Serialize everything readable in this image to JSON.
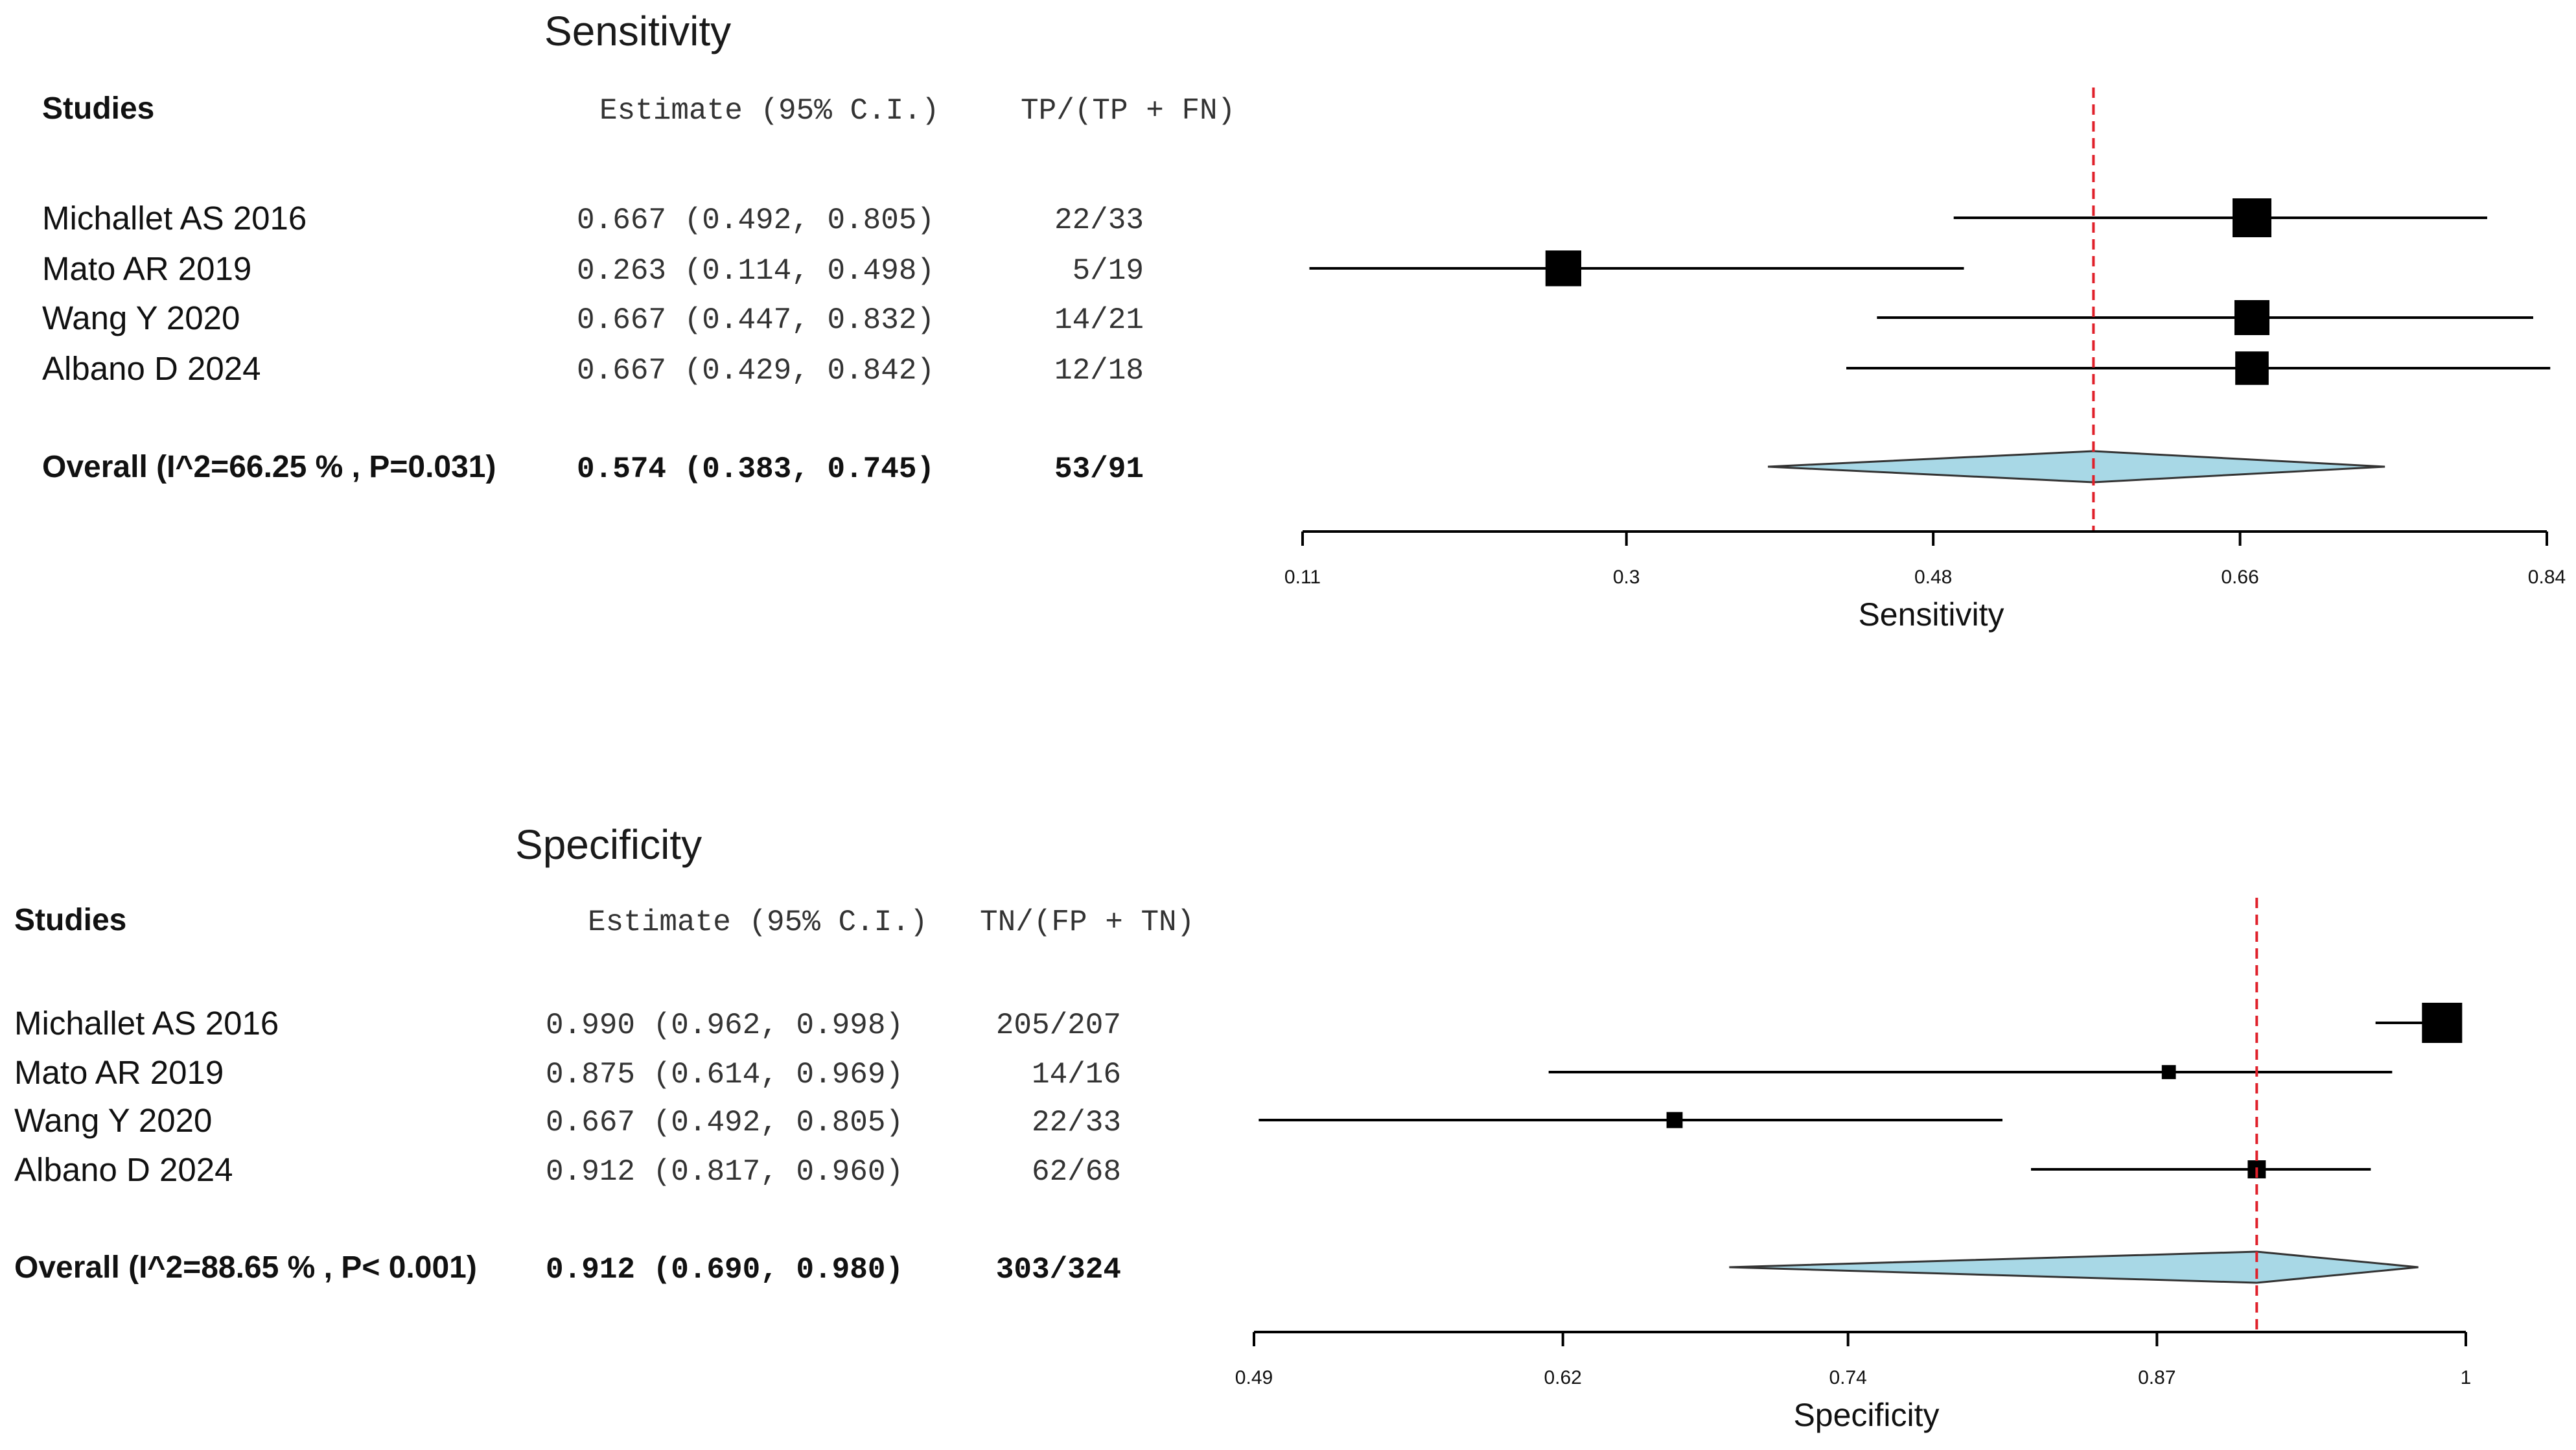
{
  "chart_data": [
    {
      "type": "forest",
      "title": "Sensitivity",
      "xlabel": "Sensitivity",
      "xlim": [
        0.11,
        0.84
      ],
      "xticks": [
        0.11,
        0.3,
        0.48,
        0.66,
        0.84
      ],
      "xtick_labels": [
        "0.11",
        "0.3",
        "0.48",
        "0.66",
        "0.84"
      ],
      "reference_line": 0.574,
      "headers": {
        "studies": "Studies",
        "estimate": "Estimate (95% C.I.)",
        "ratio": "TP/(TP + FN)"
      },
      "studies": [
        {
          "name": "Michallet AS  2016",
          "estimate": 0.667,
          "lo": 0.492,
          "hi": 0.805,
          "estimate_text": "0.667 (0.492, 0.805)",
          "ratio_text": "22/33",
          "weight": 1.0
        },
        {
          "name": "Mato AR 2019",
          "estimate": 0.263,
          "lo": 0.114,
          "hi": 0.498,
          "estimate_text": "0.263 (0.114, 0.498)",
          "ratio_text": "5/19",
          "weight": 0.92
        },
        {
          "name": "Wang Y  2020",
          "estimate": 0.667,
          "lo": 0.447,
          "hi": 0.832,
          "estimate_text": "0.667 (0.447, 0.832)",
          "ratio_text": "14/21",
          "weight": 0.9
        },
        {
          "name": "Albano D  2024",
          "estimate": 0.667,
          "lo": 0.429,
          "hi": 0.842,
          "estimate_text": "0.667 (0.429, 0.842)",
          "ratio_text": "12/18",
          "weight": 0.86
        }
      ],
      "overall": {
        "label": "Overall (I^2=66.25 % , P=0.031)",
        "estimate": 0.574,
        "lo": 0.383,
        "hi": 0.745,
        "estimate_text": "0.574 (0.383, 0.745)",
        "ratio_text": "53/91"
      }
    },
    {
      "type": "forest",
      "title": "Specificity",
      "xlabel": "Specificity",
      "xlim": [
        0.49,
        1.0
      ],
      "xticks": [
        0.49,
        0.62,
        0.74,
        0.87,
        1.0
      ],
      "xtick_labels": [
        "0.49",
        "0.62",
        "0.74",
        "0.87",
        "1"
      ],
      "reference_line": 0.912,
      "headers": {
        "studies": "Studies",
        "estimate": "Estimate (95% C.I.)",
        "ratio": "TN/(FP + TN)"
      },
      "studies": [
        {
          "name": "Michallet AS  2016",
          "estimate": 0.99,
          "lo": 0.962,
          "hi": 0.998,
          "estimate_text": "0.990 (0.962, 0.998)",
          "ratio_text": "205/207",
          "weight": 1.0
        },
        {
          "name": "Mato AR 2019",
          "estimate": 0.875,
          "lo": 0.614,
          "hi": 0.969,
          "estimate_text": "0.875 (0.614, 0.969)",
          "ratio_text": "14/16",
          "weight": 0.35
        },
        {
          "name": "Wang Y  2020",
          "estimate": 0.667,
          "lo": 0.492,
          "hi": 0.805,
          "estimate_text": "0.667 (0.492, 0.805)",
          "ratio_text": "22/33",
          "weight": 0.4
        },
        {
          "name": "Albano D  2024",
          "estimate": 0.912,
          "lo": 0.817,
          "hi": 0.96,
          "estimate_text": "0.912 (0.817, 0.960)",
          "ratio_text": "62/68",
          "weight": 0.45
        }
      ],
      "overall": {
        "label": "Overall (I^2=88.65 % , P< 0.001)",
        "estimate": 0.912,
        "lo": 0.69,
        "hi": 0.98,
        "estimate_text": "0.912 (0.690, 0.980)",
        "ratio_text": "303/324"
      }
    }
  ],
  "colors": {
    "reference_line": "#e0202a",
    "diamond_fill": "#a8d8e6",
    "ink": "#000000"
  }
}
